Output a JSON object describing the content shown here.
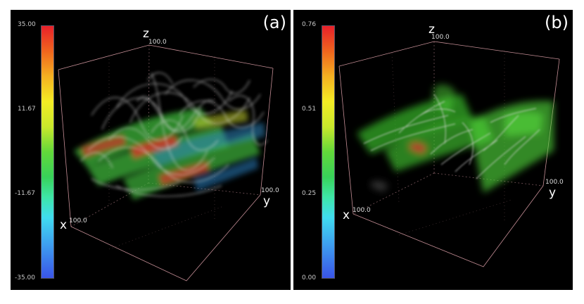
{
  "panels": [
    {
      "label": "(a)",
      "colorbar_ticks": [
        "35.00",
        "11.67",
        "-11.67",
        "-35.00"
      ],
      "axes": {
        "z": "z",
        "x": "x",
        "y": "y",
        "z_max": "100.0",
        "x_max": "100.0",
        "y_max": "100.0"
      }
    },
    {
      "label": "(b)",
      "colorbar_ticks": [
        "0.76",
        "0.51",
        "0.25",
        "0.00"
      ],
      "axes": {
        "z": "z",
        "x": "x",
        "y": "y",
        "z_max": "100.0",
        "x_max": "100.0",
        "y_max": "100.0"
      }
    }
  ],
  "colors": {
    "background": "#000000",
    "box_edge": "#e7a7b0",
    "streamline": "#d9d9d9",
    "field_green": "#4fd23a"
  }
}
